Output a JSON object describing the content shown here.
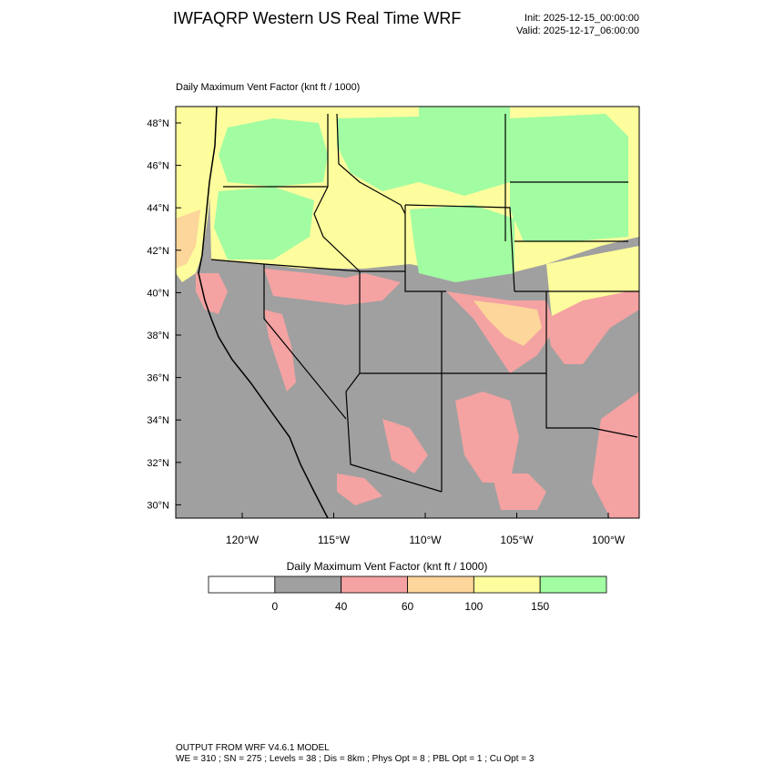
{
  "header": {
    "title": "IWFAQRP Western US Real Time WRF",
    "init": "Init: 2025-12-15_00:00:00",
    "valid": "Valid: 2025-12-17_06:00:00"
  },
  "map": {
    "subtitle": "Daily Maximum Vent Factor   (knt ft / 1000)",
    "lat_labels": [
      "48°N",
      "46°N",
      "44°N",
      "42°N",
      "40°N",
      "38°N",
      "36°N",
      "34°N",
      "32°N",
      "30°N"
    ],
    "lon_labels": [
      "120°W",
      "115°W",
      "110°W",
      "105°W",
      "100°W"
    ],
    "colors": {
      "gray": "#a0a0a0",
      "red": "#f4a2a2",
      "orange": "#fcd69a",
      "yellow": "#fdfd9d",
      "green": "#a2fca2"
    }
  },
  "legend": {
    "title": "Daily Maximum Vent Factor  (knt ft / 1000)",
    "colors": [
      "#ffffff",
      "#a0a0a0",
      "#f4a2a2",
      "#fcd69a",
      "#fdfd9d",
      "#a2fca2"
    ],
    "ticks": [
      "0",
      "40",
      "60",
      "100",
      "150"
    ]
  },
  "footer": {
    "line1": "OUTPUT FROM WRF V4.6.1 MODEL",
    "line2": "WE = 310 ; SN = 275 ; Levels = 38 ; Dis = 8km ; Phys Opt = 8 ; PBL Opt = 1 ; Cu Opt = 3"
  }
}
